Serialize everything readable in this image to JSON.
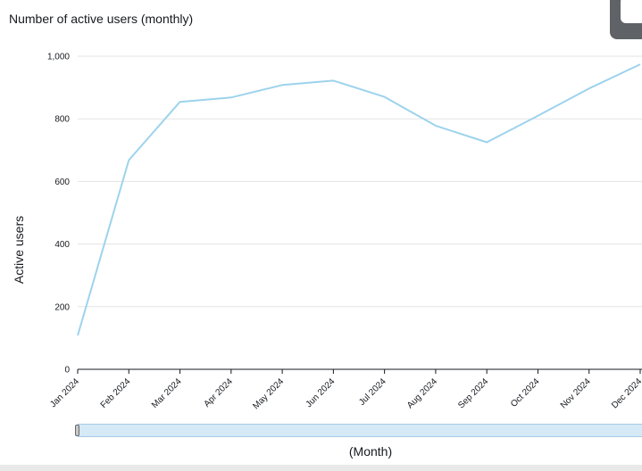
{
  "title": "Number of active users (monthly)",
  "colors": {
    "line": "#9dd3ec",
    "grid": "#e3e3e3",
    "axis": "#16191f"
  },
  "chart_data": {
    "type": "line",
    "title": "Number of active users (monthly)",
    "xlabel": "(Month)",
    "ylabel": "Active users",
    "categories": [
      "Jan 2024",
      "Feb 2024",
      "Mar 2024",
      "Apr 2024",
      "May 2024",
      "Jun 2024",
      "Jul 2024",
      "Aug 2024",
      "Sep 2024",
      "Oct 2024",
      "Nov 2024",
      "Dec 2024"
    ],
    "series": [
      {
        "values": [
          108,
          668,
          854,
          868,
          908,
          922,
          870,
          778,
          725,
          810,
          897,
          974
        ]
      }
    ],
    "ylim": [
      0,
      1000
    ],
    "yticks": [
      0,
      200,
      400,
      600,
      800,
      1000
    ],
    "ytick_labels": [
      "0",
      "200",
      "400",
      "600",
      "800",
      "1,000"
    ],
    "grid": true
  }
}
